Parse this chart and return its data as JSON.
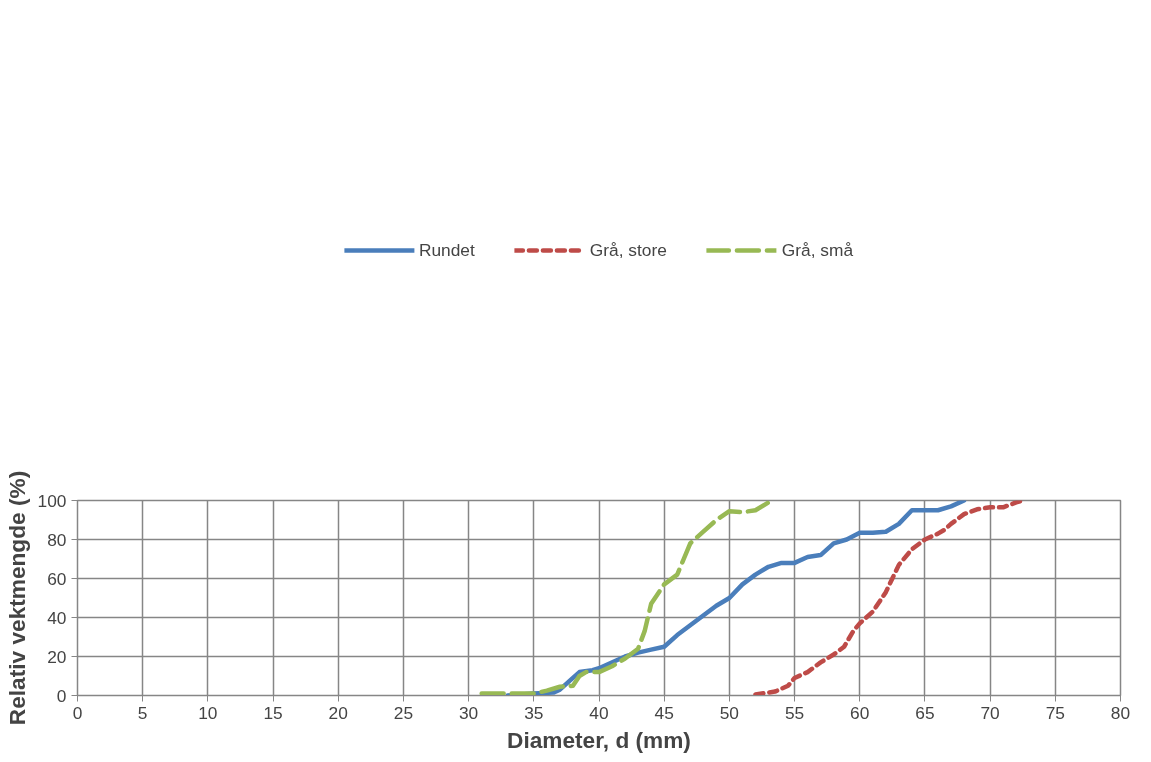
{
  "chart_data": {
    "type": "line",
    "xlabel": "Diameter, d (mm)",
    "ylabel": "Relativ vektmengde (%)",
    "xlim": [
      0,
      80
    ],
    "ylim": [
      0,
      100
    ],
    "xticks": [
      0,
      5,
      10,
      15,
      20,
      25,
      30,
      35,
      40,
      45,
      50,
      55,
      60,
      65,
      70,
      75,
      80
    ],
    "yticks": [
      0,
      20,
      40,
      60,
      80,
      100
    ],
    "grid": true,
    "legend": "top",
    "marker": "none",
    "series": [
      {
        "name": "Rundet",
        "color": "#4a7ebb",
        "line_style": "solid",
        "x": [
          33,
          35,
          36.5,
          37,
          38,
          38.5,
          39.5,
          40,
          42,
          43,
          44,
          45,
          46,
          47,
          48,
          49,
          50,
          51,
          52,
          53,
          54,
          55,
          56,
          57,
          58,
          59,
          60,
          61,
          62,
          63,
          64,
          65,
          66,
          67,
          68
        ],
        "values": [
          0,
          1,
          1.5,
          3,
          9,
          12,
          13,
          14,
          20,
          22,
          23.5,
          25,
          31,
          36,
          41,
          46,
          50,
          57,
          62,
          66,
          68,
          68,
          71,
          72,
          78,
          80,
          83.5,
          83.5,
          84,
          88,
          95,
          95,
          95,
          97,
          100
        ]
      },
      {
        "name": "Grå, store",
        "color": "#be4b48",
        "line_style": "dotted",
        "x": [
          52,
          53.5,
          54.5,
          55,
          56,
          57,
          58,
          58.8,
          59.5,
          60,
          61,
          62,
          62.5,
          63,
          64,
          65,
          66,
          66.5,
          67,
          68,
          69,
          70,
          71,
          72,
          72.5
        ],
        "values": [
          0.5,
          2,
          5,
          9,
          12,
          17,
          21,
          25,
          33,
          37,
          43,
          53,
          60,
          67,
          75,
          80,
          83,
          85,
          88,
          93,
          95.5,
          96.5,
          96.5,
          99,
          100
        ]
      },
      {
        "name": "Grå, små",
        "color": "#98b954",
        "line_style": "dashed",
        "x": [
          31,
          35,
          36,
          37,
          38,
          38.5,
          39,
          40,
          41,
          42,
          43,
          43.5,
          44,
          45,
          46,
          46.5,
          47,
          48,
          49,
          50,
          51,
          52,
          53,
          53.5
        ],
        "values": [
          1,
          1,
          2.5,
          4.5,
          5,
          10,
          12,
          12,
          15,
          19,
          24,
          33,
          47,
          57,
          62,
          70,
          78,
          84,
          90,
          94.5,
          94,
          95,
          99,
          100
        ]
      }
    ]
  }
}
